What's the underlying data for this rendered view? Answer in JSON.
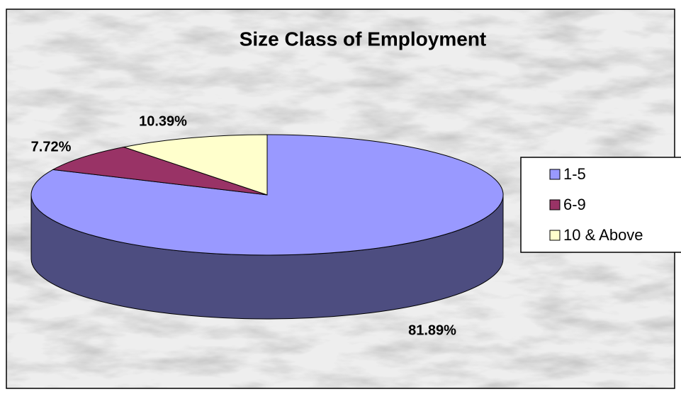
{
  "chart_data": {
    "type": "pie3d",
    "title": "Size Class of Employment",
    "categories": [
      "1-5",
      "6-9",
      "10 & Above"
    ],
    "values": [
      81.89,
      7.72,
      10.39
    ],
    "value_labels": [
      "81.89%",
      "7.72%",
      "10.39%"
    ],
    "colors": [
      "#9999ff",
      "#993366",
      "#ffffcc"
    ],
    "legend": "right"
  }
}
